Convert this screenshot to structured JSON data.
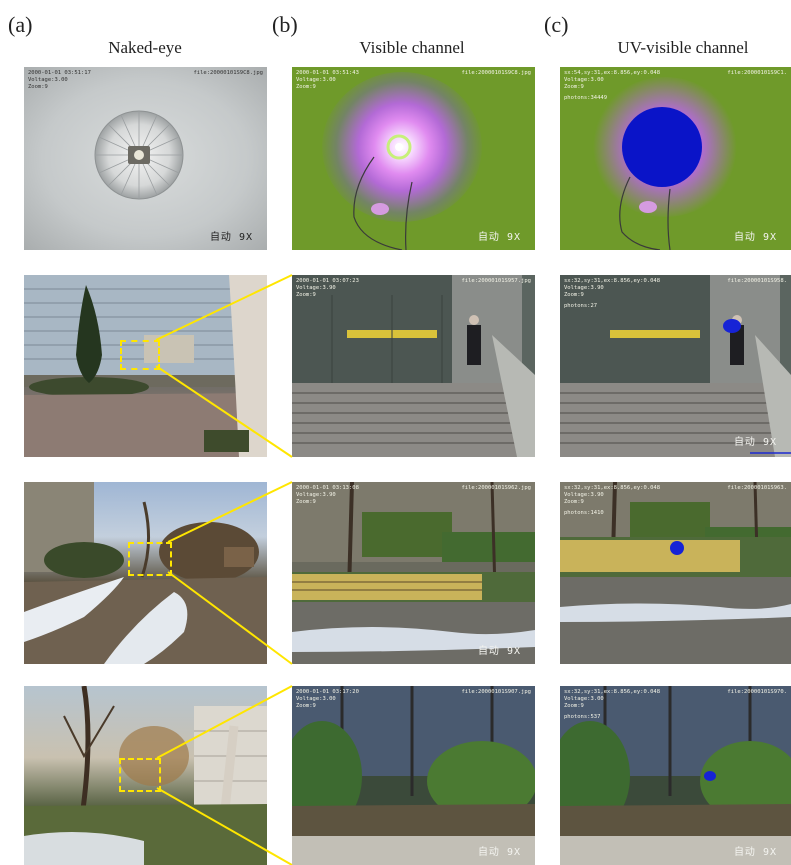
{
  "panel_labels": [
    "(a)",
    "(b)",
    "(c)"
  ],
  "columns": [
    "Naked-eye",
    "Visible channel",
    "UV-visible channel"
  ],
  "osd": {
    "r1": {
      "a": {
        "date": "2000-01-01 03:51:17",
        "file": "file:20000101S9C8.jpg",
        "voltage": "Voltage:3.00",
        "zoom": "Zoom:9",
        "foot": "自动 9X"
      },
      "b": {
        "date": "2000-01-01 03:51:43",
        "file": "file:20000101S9C8.jpg",
        "voltage": "Voltage:3.00",
        "zoom": "Zoom:9",
        "foot": "自动 9X"
      },
      "c": {
        "coords": "sx:54,sy:31,ex:8.856,ey:0.048",
        "file": "file:20000101S9C1.",
        "voltage": "Voltage:3.00",
        "zoom": "Zoom:9",
        "photons": "photons:34449",
        "foot": "自动 9X"
      }
    },
    "r2": {
      "b": {
        "date": "2000-01-01 03:07:23",
        "file": "file:20000101S957.jpg",
        "voltage": "Voltage:3.90",
        "zoom": "Zoom:9"
      },
      "c": {
        "coords": "sx:32,sy:31,ex:8.856,ey:0.048",
        "file": "file:20000101S958.",
        "voltage": "Voltage:3.90",
        "zoom": "Zoom:9",
        "photons": "photons:27",
        "foot": "自动 9X"
      }
    },
    "r3": {
      "b": {
        "date": "2000-01-01 03:13:08",
        "file": "file:20000101S962.jpg",
        "voltage": "Voltage:3.90",
        "zoom": "Zoom:9",
        "foot": "自动 9X"
      },
      "c": {
        "coords": "sx:32,sy:31,ex:8.856,ey:0.048",
        "file": "file:20000101S963.",
        "voltage": "Voltage:3.90",
        "zoom": "Zoom:9",
        "photons": "photons:1410"
      }
    },
    "r4": {
      "b": {
        "date": "2000-01-01 03:17:20",
        "file": "file:20000101S907.jpg",
        "voltage": "Voltage:3.00",
        "zoom": "Zoom:9",
        "foot": "自动 9X"
      },
      "c": {
        "coords": "sx:32,sy:31,ex:8.856,ey:0.048",
        "file": "file:20000101S970.",
        "voltage": "Voltage:3.00",
        "zoom": "Zoom:9",
        "photons": "photons:537",
        "foot": "自动 9X"
      }
    }
  }
}
